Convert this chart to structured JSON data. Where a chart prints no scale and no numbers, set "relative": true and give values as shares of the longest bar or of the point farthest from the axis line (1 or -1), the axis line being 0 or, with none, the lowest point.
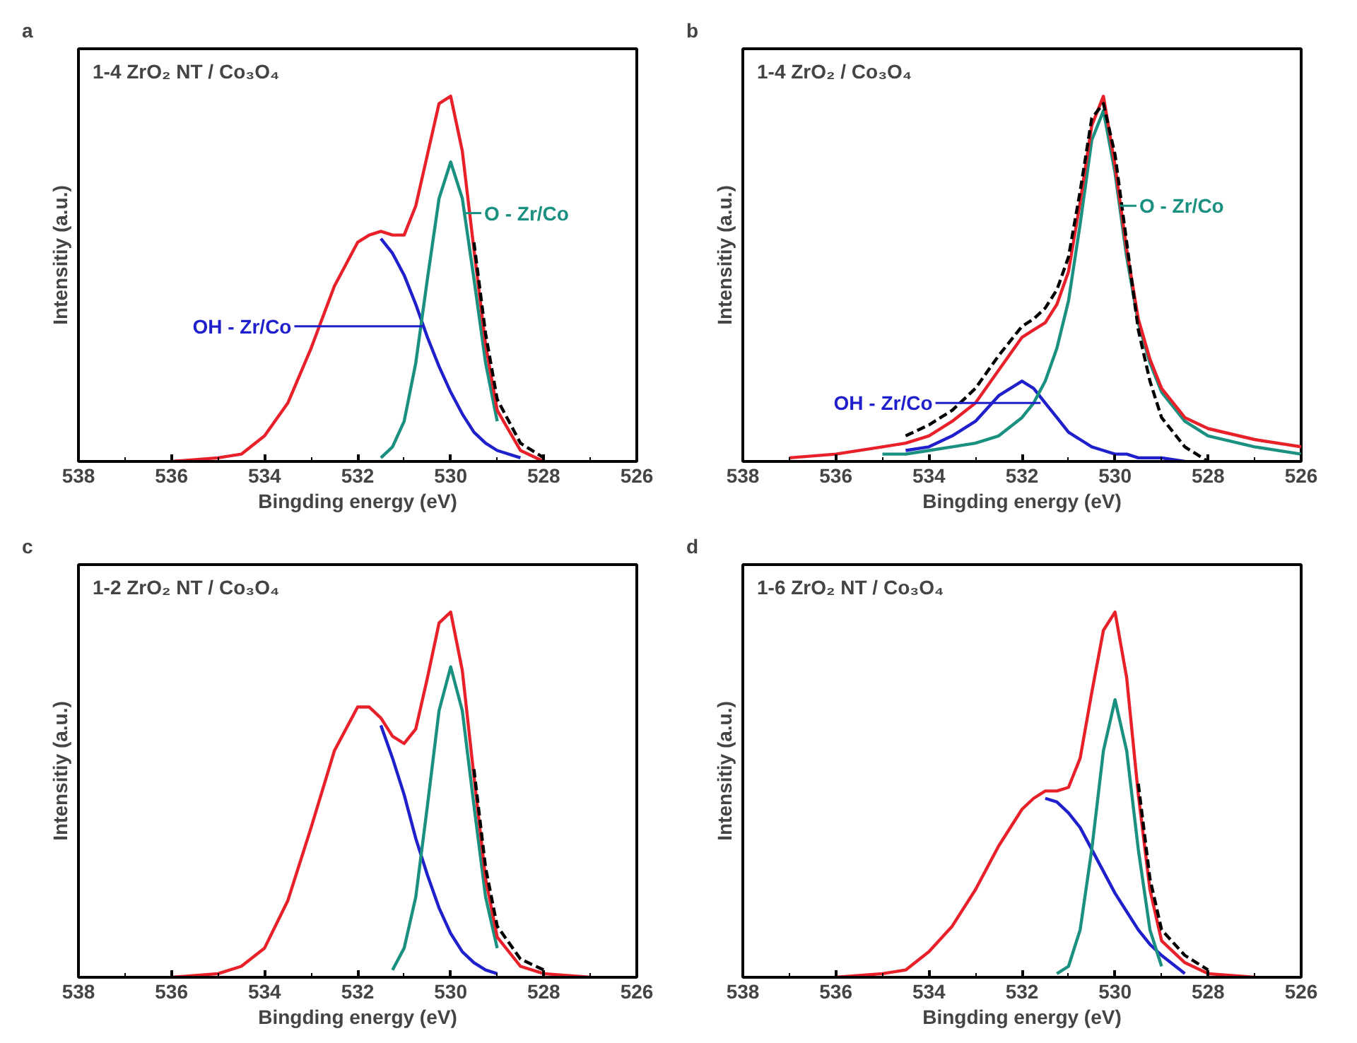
{
  "chart_data": [
    {
      "type": "line",
      "title": "1-4 ZrO₂ NT / Co₃O₄",
      "xlabel": "Bingding energy (eV)",
      "ylabel": "Intensitiy (a.u.)",
      "relative": true,
      "xlim": [
        538,
        526
      ],
      "xticks": [
        538,
        536,
        534,
        532,
        530,
        528,
        526
      ],
      "x": [
        536,
        535,
        534.5,
        534,
        533.5,
        533,
        532.5,
        532,
        531.75,
        531.5,
        531.25,
        531,
        530.75,
        530.5,
        530.25,
        530,
        529.75,
        529.5,
        529.25,
        529,
        528.5,
        528
      ],
      "annotations": [
        "a",
        {
          "text": "OH - Zr/Co",
          "x": 530.6,
          "y": 0.37
        },
        {
          "text": "O - Zr/Co",
          "x": 529.7,
          "y": 0.68
        }
      ],
      "series": [
        {
          "color": "#1f1fcc",
          "values": [
            null,
            null,
            null,
            null,
            null,
            null,
            null,
            null,
            null,
            0.61,
            0.57,
            0.51,
            0.43,
            0.34,
            0.26,
            0.19,
            0.13,
            0.08,
            0.05,
            0.03,
            0.01,
            null
          ]
        },
        {
          "color": "#1a9080",
          "values": [
            null,
            null,
            null,
            null,
            null,
            null,
            null,
            null,
            null,
            0.01,
            0.04,
            0.11,
            0.27,
            0.5,
            0.72,
            0.82,
            0.72,
            0.5,
            0.27,
            0.11,
            null,
            null
          ]
        },
        {
          "color": "#e8202a",
          "values": [
            0,
            0.01,
            0.02,
            0.07,
            0.16,
            0.31,
            0.48,
            0.6,
            0.62,
            0.63,
            0.62,
            0.62,
            0.7,
            0.84,
            0.98,
            1.0,
            0.85,
            0.58,
            0.32,
            0.14,
            0.03,
            0
          ]
        },
        {
          "color": "#000000",
          "line_style": "dashed",
          "values": [
            null,
            null,
            null,
            null,
            null,
            null,
            null,
            null,
            null,
            null,
            null,
            null,
            null,
            null,
            null,
            null,
            null,
            0.6,
            0.35,
            0.17,
            0.05,
            0.01
          ]
        }
      ]
    },
    {
      "type": "line",
      "title": "1-4 ZrO₂ / Co₃O₄",
      "xlabel": "Bingding energy (eV)",
      "ylabel": "Intensitiy (a.u.)",
      "relative": true,
      "xlim": [
        538,
        526
      ],
      "xticks": [
        538,
        536,
        534,
        532,
        530,
        528,
        526
      ],
      "x": [
        537,
        536,
        535,
        534.5,
        534,
        533.5,
        533,
        532.5,
        532,
        531.75,
        531.5,
        531.25,
        531,
        530.75,
        530.5,
        530.25,
        530,
        529.75,
        529.5,
        529.25,
        529,
        528.5,
        528,
        527,
        526
      ],
      "annotations": [
        "b",
        {
          "text": "OH - Zr/Co",
          "x": 531.6,
          "y": 0.16
        },
        {
          "text": "O - Zr/Co",
          "x": 529.9,
          "y": 0.7
        }
      ],
      "series": [
        {
          "color": "#1f1fcc",
          "values": [
            null,
            null,
            null,
            0.03,
            0.04,
            0.07,
            0.11,
            0.18,
            0.22,
            0.2,
            0.16,
            0.12,
            0.08,
            0.06,
            0.04,
            0.03,
            0.02,
            0.02,
            0.01,
            0.01,
            0.01,
            0,
            null,
            null,
            null
          ]
        },
        {
          "color": "#1a9080",
          "values": [
            null,
            null,
            0.02,
            0.02,
            0.03,
            0.04,
            0.05,
            0.07,
            0.12,
            0.16,
            0.22,
            0.31,
            0.44,
            0.65,
            0.88,
            0.96,
            0.79,
            0.56,
            0.38,
            0.27,
            0.19,
            0.11,
            0.07,
            0.04,
            0.02
          ]
        },
        {
          "color": "#e8202a",
          "values": [
            0.01,
            0.02,
            0.04,
            0.05,
            0.07,
            0.11,
            0.16,
            0.25,
            0.34,
            0.36,
            0.38,
            0.43,
            0.52,
            0.71,
            0.92,
            1.0,
            0.81,
            0.58,
            0.39,
            0.28,
            0.2,
            0.12,
            0.09,
            0.06,
            0.04
          ]
        },
        {
          "color": "#000000",
          "line_style": "dashed",
          "values": [
            null,
            null,
            null,
            0.07,
            0.1,
            0.14,
            0.2,
            0.29,
            0.37,
            0.39,
            0.42,
            0.47,
            0.56,
            0.74,
            0.94,
            0.98,
            0.84,
            0.6,
            0.36,
            0.22,
            0.12,
            0.04,
            0,
            null,
            null
          ]
        }
      ]
    },
    {
      "type": "line",
      "title": "1-2 ZrO₂ NT / Co₃O₄",
      "xlabel": "Bingding energy (eV)",
      "ylabel": "Intensitiy (a.u.)",
      "relative": true,
      "xlim": [
        538,
        526
      ],
      "xticks": [
        538,
        536,
        534,
        532,
        530,
        528,
        526
      ],
      "x": [
        536,
        535,
        534.5,
        534,
        533.5,
        533,
        532.5,
        532,
        531.75,
        531.5,
        531.25,
        531,
        530.75,
        530.5,
        530.25,
        530,
        529.75,
        529.5,
        529.25,
        529,
        528.5,
        528,
        527
      ],
      "annotations": [
        "c"
      ],
      "series": [
        {
          "color": "#1f1fcc",
          "values": [
            null,
            null,
            null,
            null,
            null,
            null,
            null,
            null,
            null,
            0.69,
            0.6,
            0.5,
            0.38,
            0.28,
            0.19,
            0.12,
            0.07,
            0.04,
            0.02,
            0.01,
            null,
            null,
            null
          ]
        },
        {
          "color": "#1a9080",
          "values": [
            null,
            null,
            null,
            null,
            null,
            null,
            null,
            null,
            null,
            null,
            0.02,
            0.08,
            0.22,
            0.47,
            0.73,
            0.85,
            0.73,
            0.47,
            0.22,
            0.08,
            null,
            null,
            null
          ]
        },
        {
          "color": "#e8202a",
          "values": [
            0,
            0.01,
            0.03,
            0.08,
            0.21,
            0.41,
            0.62,
            0.74,
            0.74,
            0.71,
            0.66,
            0.64,
            0.68,
            0.82,
            0.97,
            1.0,
            0.84,
            0.55,
            0.27,
            0.11,
            0.03,
            0.01,
            0
          ]
        },
        {
          "color": "#000000",
          "line_style": "dashed",
          "values": [
            null,
            null,
            null,
            null,
            null,
            null,
            null,
            null,
            null,
            null,
            null,
            null,
            null,
            null,
            null,
            null,
            null,
            0.57,
            0.3,
            0.14,
            0.05,
            0.02,
            null
          ]
        }
      ]
    },
    {
      "type": "line",
      "title": "1-6 ZrO₂ NT / Co₃O₄",
      "xlabel": "Bingding energy (eV)",
      "ylabel": "Intensitiy (a.u.)",
      "relative": true,
      "xlim": [
        538,
        526
      ],
      "xticks": [
        538,
        536,
        534,
        532,
        530,
        528,
        526
      ],
      "x": [
        536,
        535,
        534.5,
        534,
        533.5,
        533,
        532.5,
        532,
        531.75,
        531.5,
        531.25,
        531,
        530.75,
        530.5,
        530.25,
        530,
        529.75,
        529.5,
        529.25,
        529,
        528.5,
        528,
        527
      ],
      "annotations": [
        "d"
      ],
      "series": [
        {
          "color": "#1f1fcc",
          "values": [
            null,
            null,
            null,
            null,
            null,
            null,
            null,
            null,
            null,
            0.49,
            0.48,
            0.45,
            0.41,
            0.35,
            0.29,
            0.23,
            0.18,
            0.13,
            0.09,
            0.06,
            0.01,
            null,
            null
          ]
        },
        {
          "color": "#1a9080",
          "values": [
            null,
            null,
            null,
            null,
            null,
            null,
            null,
            null,
            null,
            null,
            0.01,
            0.03,
            0.13,
            0.35,
            0.62,
            0.76,
            0.62,
            0.35,
            0.13,
            0.03,
            null,
            null,
            null
          ]
        },
        {
          "color": "#e8202a",
          "values": [
            0,
            0.01,
            0.02,
            0.07,
            0.14,
            0.24,
            0.36,
            0.46,
            0.49,
            0.51,
            0.51,
            0.52,
            0.6,
            0.78,
            0.95,
            1.0,
            0.82,
            0.5,
            0.24,
            0.1,
            0.04,
            0.01,
            0
          ]
        },
        {
          "color": "#000000",
          "line_style": "dashed",
          "values": [
            null,
            null,
            null,
            null,
            null,
            null,
            null,
            null,
            null,
            null,
            null,
            null,
            null,
            null,
            null,
            null,
            null,
            0.53,
            0.27,
            0.13,
            0.06,
            0.02,
            null
          ]
        }
      ]
    }
  ]
}
